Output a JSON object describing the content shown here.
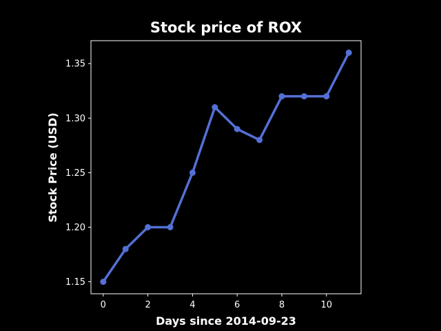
{
  "chart_data": {
    "type": "line",
    "title": "Stock price of ROX",
    "xlabel": "Days since 2014-09-23",
    "ylabel": "Stock Price (USD)",
    "x": [
      0,
      1,
      2,
      3,
      4,
      5,
      6,
      7,
      8,
      9,
      10,
      11
    ],
    "series": [
      {
        "values": [
          1.15,
          1.18,
          1.2,
          1.2,
          1.25,
          1.31,
          1.29,
          1.28,
          1.32,
          1.32,
          1.32,
          1.36
        ]
      }
    ],
    "xlim": [
      -0.55,
      11.55
    ],
    "ylim": [
      1.139,
      1.371
    ],
    "xticks": [
      0,
      2,
      4,
      6,
      8,
      10
    ],
    "xtick_labels": [
      "0",
      "2",
      "4",
      "6",
      "8",
      "10"
    ],
    "yticks": [
      1.15,
      1.2,
      1.25,
      1.3,
      1.35
    ],
    "ytick_labels": [
      "1.15",
      "1.20",
      "1.25",
      "1.30",
      "1.35"
    ],
    "grid": false,
    "legend": "none",
    "colors": {
      "background": "#000000",
      "line": "#5470d6",
      "text": "#ffffff",
      "axes": "#ffffff"
    }
  }
}
